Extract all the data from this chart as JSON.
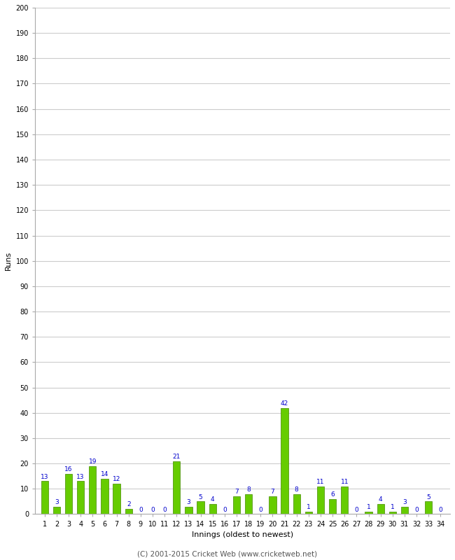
{
  "innings": [
    1,
    2,
    3,
    4,
    5,
    6,
    7,
    8,
    9,
    10,
    11,
    12,
    13,
    14,
    15,
    16,
    17,
    18,
    19,
    20,
    21,
    22,
    23,
    24,
    25,
    26,
    27,
    28,
    29,
    30,
    31,
    32,
    33,
    34
  ],
  "runs": [
    13,
    3,
    16,
    13,
    19,
    14,
    12,
    2,
    0,
    0,
    0,
    21,
    3,
    5,
    4,
    0,
    7,
    8,
    0,
    7,
    42,
    8,
    1,
    11,
    6,
    11,
    0,
    1,
    4,
    1,
    3,
    0,
    5,
    0
  ],
  "bar_color": "#66cc00",
  "bar_edge_color": "#448800",
  "background_color": "#ffffff",
  "grid_color": "#cccccc",
  "xlabel": "Innings (oldest to newest)",
  "ylabel": "Runs",
  "ylim": [
    0,
    200
  ],
  "yticks": [
    0,
    10,
    20,
    30,
    40,
    50,
    60,
    70,
    80,
    90,
    100,
    110,
    120,
    130,
    140,
    150,
    160,
    170,
    180,
    190,
    200
  ],
  "label_color": "#0000cc",
  "label_fontsize": 6.5,
  "axis_fontsize": 8,
  "tick_fontsize": 7,
  "footer": "(C) 2001-2015 Cricket Web (www.cricketweb.net)",
  "footer_fontsize": 7.5
}
